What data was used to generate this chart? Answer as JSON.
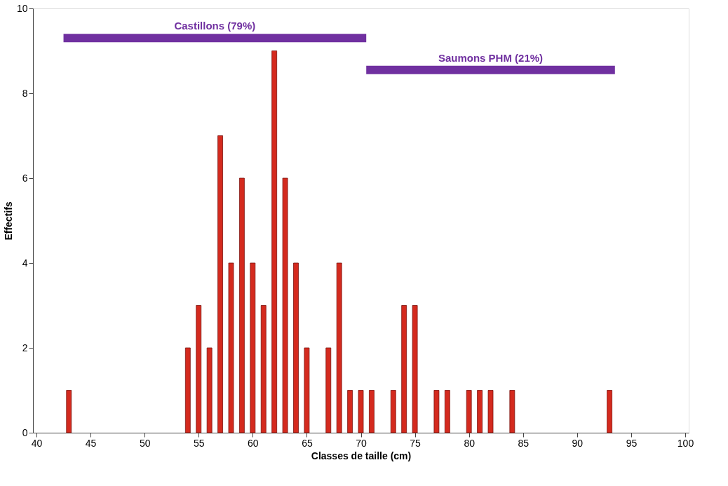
{
  "chart_data": {
    "type": "bar",
    "xlabel": "Classes de taille (cm)",
    "ylabel": "Effectifs",
    "x": [
      43,
      54,
      55,
      56,
      57,
      58,
      59,
      60,
      61,
      62,
      63,
      64,
      65,
      67,
      68,
      69,
      70,
      71,
      73,
      74,
      75,
      77,
      78,
      80,
      81,
      82,
      84,
      93
    ],
    "series": [
      {
        "color": "#d42a1e",
        "values": [
          1,
          2,
          3,
          2,
          7,
          4,
          6,
          4,
          3,
          9,
          6,
          4,
          2,
          2,
          4,
          1,
          1,
          1,
          1,
          3,
          3,
          1,
          1,
          1,
          1,
          1,
          1,
          1
        ]
      },
      {
        "type": "line",
        "name": "Castillons (79%)",
        "color": "#7030a0",
        "x": [
          42.5,
          70.5
        ],
        "values": [
          9.3,
          9.3
        ]
      },
      {
        "type": "line",
        "name": "Saumons PHM (21%)",
        "color": "#7030a0",
        "x": [
          70.5,
          93.5
        ],
        "values": [
          8.55,
          8.55
        ]
      }
    ],
    "xlim": [
      40,
      100
    ],
    "xticks": [
      40,
      45,
      50,
      55,
      60,
      65,
      70,
      75,
      80,
      85,
      90,
      95,
      100
    ],
    "ylim": [
      0,
      10
    ],
    "yticks": [
      0,
      2,
      4,
      6,
      8,
      10
    ],
    "grid": false
  }
}
